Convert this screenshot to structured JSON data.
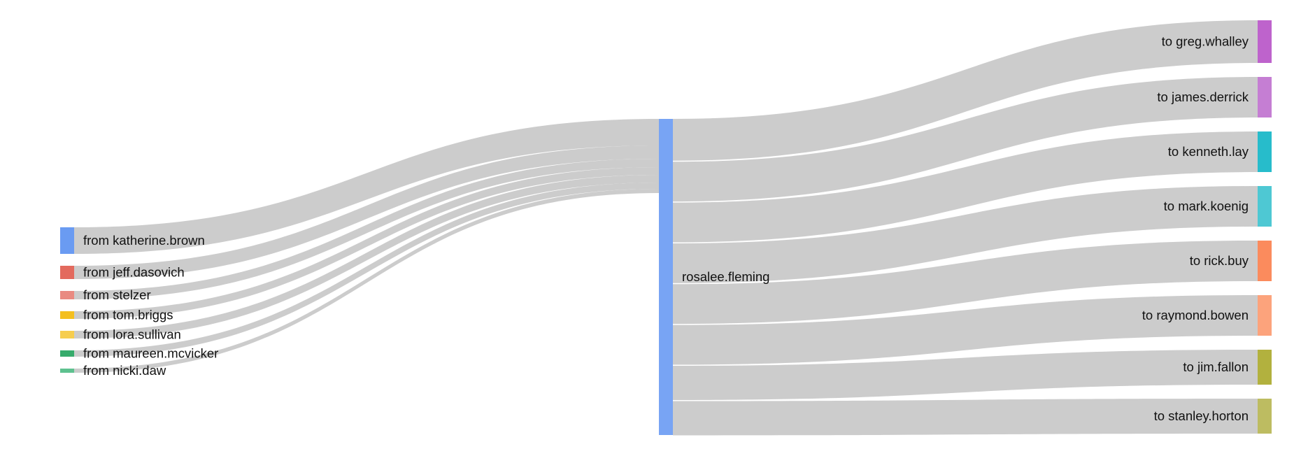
{
  "chart_data": {
    "type": "sankey",
    "center": {
      "label": "rosalee.fleming",
      "color": "#78a4f4"
    },
    "sources": [
      {
        "label": "from katherine.brown",
        "value": 38,
        "color": "#6a9bf2"
      },
      {
        "label": "from jeff.dasovich",
        "value": 19,
        "color": "#e36a5e"
      },
      {
        "label": "from stelzer",
        "value": 12,
        "color": "#e98a81"
      },
      {
        "label": "from tom.briggs",
        "value": 11,
        "color": "#f4bf1f"
      },
      {
        "label": "from lora.sullivan",
        "value": 11,
        "color": "#f6cd4e"
      },
      {
        "label": "from maureen.mcvicker",
        "value": 9,
        "color": "#36ab6b"
      },
      {
        "label": "from nicki.daw",
        "value": 6,
        "color": "#5ec18f"
      }
    ],
    "targets": [
      {
        "label": "to greg.whalley",
        "value": 61,
        "color": "#be63cc"
      },
      {
        "label": "to james.derrick",
        "value": 58,
        "color": "#c57ed3"
      },
      {
        "label": "to kenneth.lay",
        "value": 58,
        "color": "#27bccb"
      },
      {
        "label": "to mark.koenig",
        "value": 58,
        "color": "#4ec8d3"
      },
      {
        "label": "to rick.buy",
        "value": 58,
        "color": "#fb8b5d"
      },
      {
        "label": "to raymond.bowen",
        "value": 58,
        "color": "#fca37c"
      },
      {
        "label": "to jim.fallon",
        "value": 50,
        "color": "#b2b13e"
      },
      {
        "label": "to stanley.horton",
        "value": 50,
        "color": "#bdbc61"
      }
    ]
  }
}
